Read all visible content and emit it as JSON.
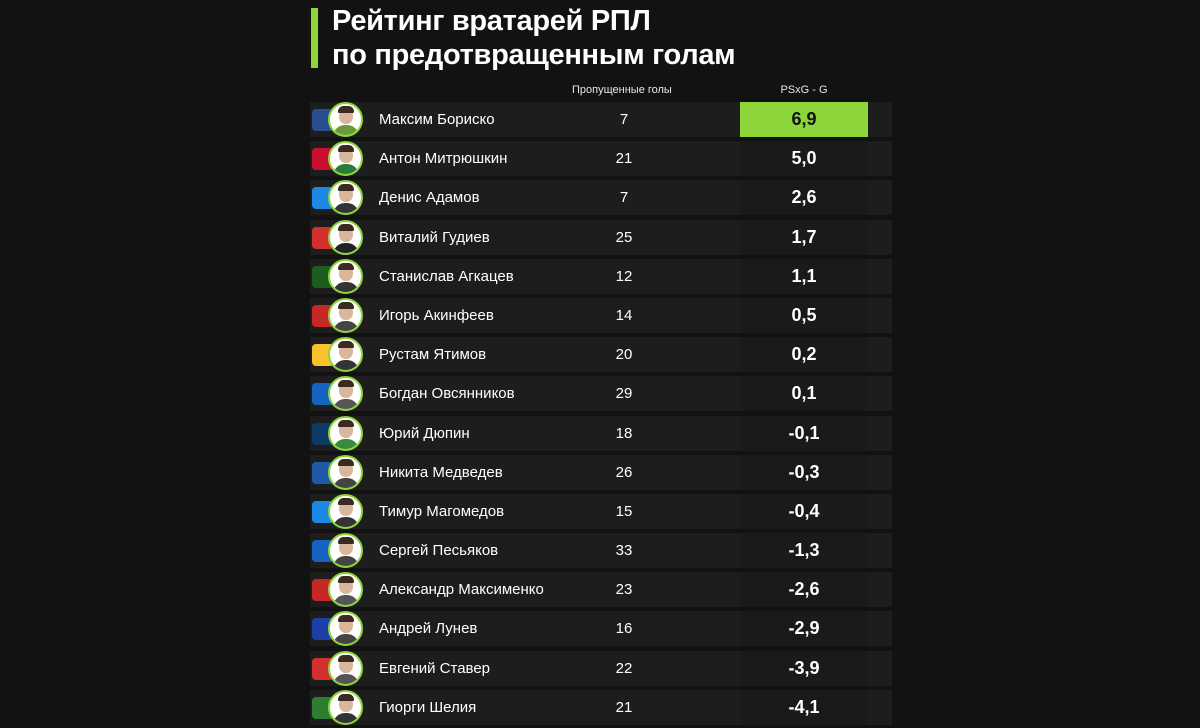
{
  "title": {
    "line1": "Рейтинг вратарей РПЛ",
    "line2": "по предотвращенным голам"
  },
  "columns": {
    "goals": "Пропущенные голы",
    "psxg": "PSxG - G"
  },
  "colors": {
    "accent": "#8dd63a",
    "background": "#121212",
    "row": "#1d1d1d"
  },
  "rows": [
    {
      "name": "Максим Бориско",
      "goals": "7",
      "psxg": "6,9",
      "club_color": "#2a4d8f",
      "kit": "#6a9a3a"
    },
    {
      "name": "Антон Митрюшкин",
      "goals": "21",
      "psxg": "5,0",
      "club_color": "#c8102e",
      "kit": "#2a7a3a"
    },
    {
      "name": "Денис Адамов",
      "goals": "7",
      "psxg": "2,6",
      "club_color": "#1e88e5",
      "kit": "#333333"
    },
    {
      "name": "Виталий Гудиев",
      "goals": "25",
      "psxg": "1,7",
      "club_color": "#d32f2f",
      "kit": "#222222"
    },
    {
      "name": "Станислав Агкацев",
      "goals": "12",
      "psxg": "1,1",
      "club_color": "#1b5e20",
      "kit": "#333333"
    },
    {
      "name": "Игорь Акинфеев",
      "goals": "14",
      "psxg": "0,5",
      "club_color": "#c62828",
      "kit": "#444444"
    },
    {
      "name": "Рустам Ятимов",
      "goals": "20",
      "psxg": "0,2",
      "club_color": "#fbc02d",
      "kit": "#333333"
    },
    {
      "name": "Богдан Овсянников",
      "goals": "29",
      "psxg": "0,1",
      "club_color": "#1565c0",
      "kit": "#555555"
    },
    {
      "name": "Юрий Дюпин",
      "goals": "18",
      "psxg": "-0,1",
      "club_color": "#0d3b66",
      "kit": "#3a8a3a"
    },
    {
      "name": "Никита Медведев",
      "goals": "26",
      "psxg": "-0,3",
      "club_color": "#1e5aa8",
      "kit": "#444444"
    },
    {
      "name": "Тимур Магомедов",
      "goals": "15",
      "psxg": "-0,4",
      "club_color": "#1e88e5",
      "kit": "#333333"
    },
    {
      "name": "Сергей Песьяков",
      "goals": "33",
      "psxg": "-1,3",
      "club_color": "#1565c0",
      "kit": "#444444"
    },
    {
      "name": "Александр Максименко",
      "goals": "23",
      "psxg": "-2,6",
      "club_color": "#c62828",
      "kit": "#555555"
    },
    {
      "name": "Андрей Лунев",
      "goals": "16",
      "psxg": "-2,9",
      "club_color": "#1e3fa8",
      "kit": "#444444"
    },
    {
      "name": "Евгений Ставер",
      "goals": "22",
      "psxg": "-3,9",
      "club_color": "#d32f2f",
      "kit": "#555555"
    },
    {
      "name": "Гиорги Шелия",
      "goals": "21",
      "psxg": "-4,1",
      "club_color": "#2e7d32",
      "kit": "#333333"
    }
  ]
}
